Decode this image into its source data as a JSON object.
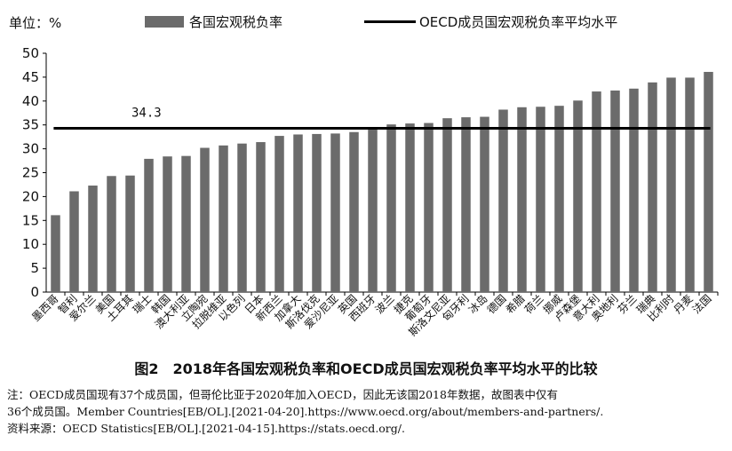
{
  "unit_label": "单位：%",
  "legend": {
    "bar_label": "各国宏观税负率",
    "line_label": "OECD成员国宏观税负率平均水平"
  },
  "caption": "图2　2018年各国宏观税负率和OECD成员国宏观税负率平均水平的比较",
  "note": {
    "line1": "注：OECD成员国现有37个成员国，但哥伦比亚于2020年加入OECD，因此无该国2018年数据，故图表中仅有",
    "line2": "36个成员国。Member Countries[EB/OL].[2021-04-20].https://www.oecd.org/about/members-and-partners/.",
    "line3": "资料来源：OECD Statistics[EB/OL].[2021-04-15].https://stats.oecd.org/."
  },
  "colors": {
    "bar": "#6b6b6b",
    "line": "#000000",
    "axis": "#000000"
  },
  "chart_data": {
    "type": "bar",
    "categories": [
      "墨西哥",
      "智利",
      "爱尔兰",
      "美国",
      "土耳其",
      "瑞士",
      "韩国",
      "澳大利亚",
      "立陶宛",
      "拉脱维亚",
      "以色列",
      "日本",
      "新西兰",
      "加拿大",
      "斯洛伐克",
      "爱沙尼亚",
      "英国",
      "西班牙",
      "波兰",
      "捷克",
      "葡萄牙",
      "斯洛文尼亚",
      "匈牙利",
      "冰岛",
      "德国",
      "希腊",
      "荷兰",
      "挪威",
      "卢森堡",
      "意大利",
      "奥地利",
      "芬兰",
      "瑞典",
      "比利时",
      "丹麦",
      "法国"
    ],
    "series": [
      {
        "name": "各国宏观税负率",
        "values": [
          16.1,
          21.1,
          22.3,
          24.3,
          24.4,
          27.9,
          28.4,
          28.5,
          30.2,
          30.7,
          31.1,
          31.4,
          32.7,
          33.0,
          33.1,
          33.2,
          33.5,
          34.4,
          35.1,
          35.3,
          35.4,
          36.4,
          36.6,
          36.7,
          38.2,
          38.7,
          38.8,
          39.0,
          40.1,
          42.0,
          42.2,
          42.6,
          43.9,
          44.9,
          44.9,
          46.1
        ]
      }
    ],
    "reference_line": {
      "name": "OECD成员国宏观税负率平均水平",
      "value": 34.3,
      "label": "34.3"
    },
    "y_ticks": [
      0,
      5,
      10,
      15,
      20,
      25,
      30,
      35,
      40,
      45,
      50
    ],
    "ylim": [
      0,
      50
    ],
    "legend_position": "top"
  }
}
